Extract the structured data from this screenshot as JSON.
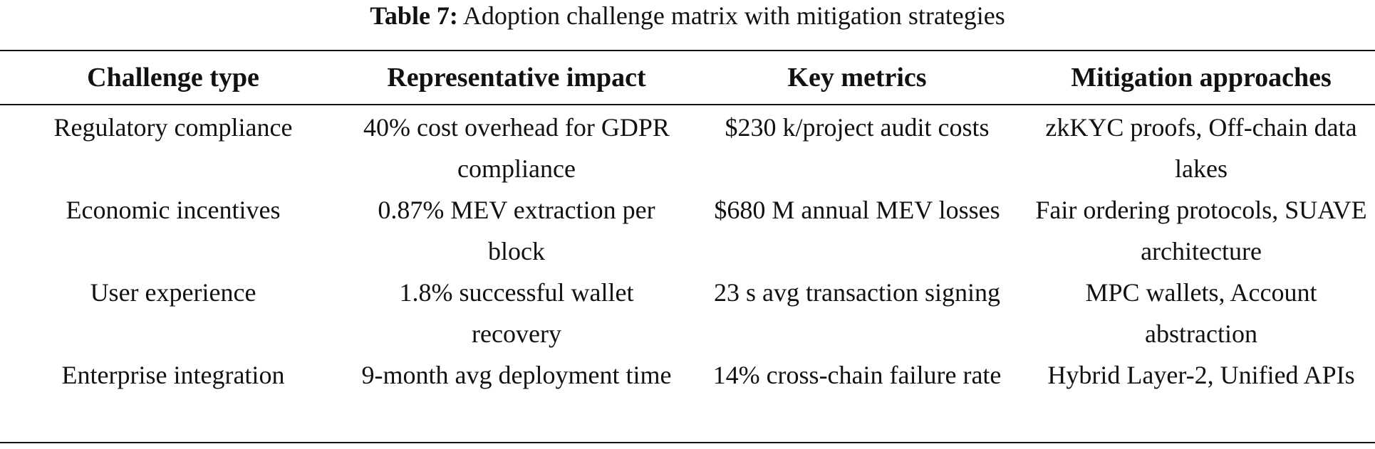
{
  "caption": {
    "label": "Table 7:",
    "text": " Adoption challenge matrix with mitigation strategies"
  },
  "headers": [
    "Challenge type",
    "Representative impact",
    "Key metrics",
    "Mitigation approaches"
  ],
  "rows": [
    [
      "Regulatory compliance",
      "40% cost overhead for GDPR compliance",
      "$230 k/project audit costs",
      "zkKYC proofs, Off-chain data lakes"
    ],
    [
      "Economic incentives",
      "0.87% MEV extraction per block",
      "$680 M annual MEV losses",
      "Fair ordering protocols, SUAVE architecture"
    ],
    [
      "User experience",
      "1.8% successful wallet recovery",
      "23 s avg transaction signing",
      "MPC wallets, Account abstraction"
    ],
    [
      "Enterprise integration",
      "9-month avg deployment time",
      "14% cross-chain failure rate",
      "Hybrid Layer-2, Unified APIs"
    ]
  ]
}
